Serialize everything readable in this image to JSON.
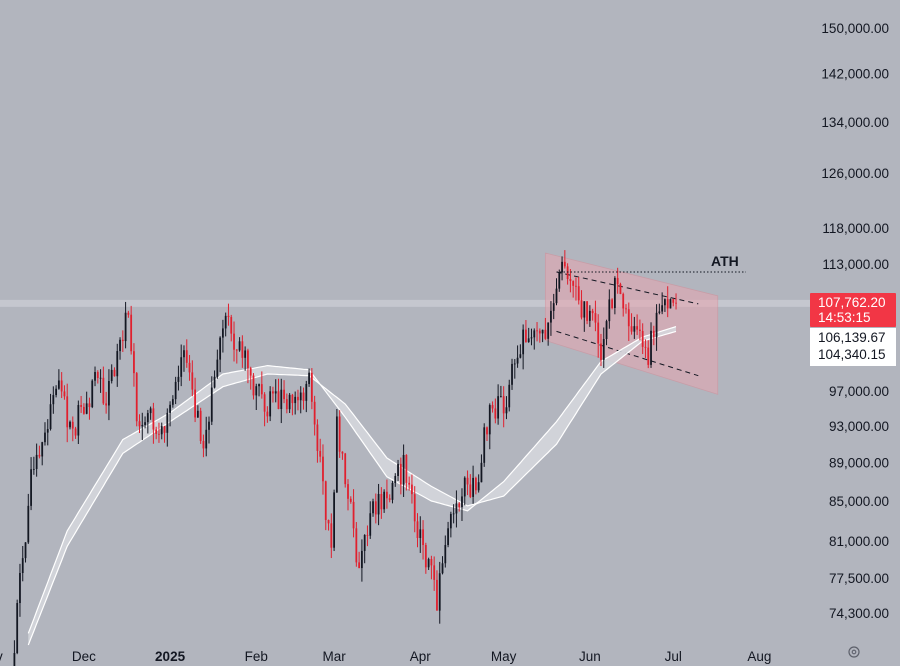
{
  "chart_data": {
    "type": "candlestick",
    "y_axis": {
      "scale": "log",
      "range": [
        72500,
        155000
      ],
      "ticks": [
        150000,
        142000,
        134000,
        126000,
        118000,
        113000,
        97000,
        93000,
        89000,
        85000,
        81000,
        77500,
        74300
      ],
      "tick_labels": [
        "150,000.00",
        "142,000.00",
        "134,000.00",
        "126,000.00",
        "118,000.00",
        "113,000.00",
        "97,000.00",
        "93,000.00",
        "89,000.00",
        "85,000.00",
        "81,000.00",
        "77,500.00",
        "74,300.00"
      ]
    },
    "x_axis": {
      "labels": [
        "Dec",
        "2025",
        "Feb",
        "Mar",
        "Apr",
        "May",
        "Jun",
        "Jul",
        "Aug"
      ],
      "label_dates": [
        "2024-12-01",
        "2025-01-01",
        "2025-02-01",
        "2025-03-01",
        "2025-04-01",
        "2025-05-01",
        "2025-06-01",
        "2025-07-01",
        "2025-08-01"
      ],
      "range": [
        "2024-11-01",
        "2025-08-25"
      ],
      "cut_label": "v"
    },
    "annotations": {
      "ath_label": "ATH",
      "ath_price": 111900,
      "horizontal_level": 107762.2,
      "channel": {
        "upper": [
          [
            "2025-05-20",
            111900
          ],
          [
            "2025-07-10",
            107700
          ]
        ],
        "lower": [
          [
            "2025-05-20",
            104200
          ],
          [
            "2025-07-10",
            98800
          ]
        ],
        "shade_from": "2025-05-16",
        "shade_to": "2025-07-17"
      }
    },
    "price_tags": [
      {
        "label": "107,762.20",
        "sub": "14:53:15",
        "bg": "#f23645",
        "fg": "#ffffff"
      },
      {
        "label": "106,139.67",
        "bg": "#ffffff",
        "fg": "#131722"
      },
      {
        "label": "104,340.15",
        "bg": "#ffffff",
        "fg": "#131722"
      }
    ],
    "colors": {
      "up": "#131722",
      "down": "#e0202e",
      "background": "#b2b5be",
      "ribbon": "#ffffff",
      "channel_fill": "#e8a6b0"
    },
    "series_key_points": [
      [
        "2024-11-05",
        69500
      ],
      [
        "2024-11-12",
        88000
      ],
      [
        "2024-11-22",
        98500
      ],
      [
        "2024-11-26",
        92000
      ],
      [
        "2024-12-05",
        98000
      ],
      [
        "2024-12-09",
        96500
      ],
      [
        "2024-12-17",
        106500
      ],
      [
        "2024-12-20",
        94500
      ],
      [
        "2024-12-30",
        92500
      ],
      [
        "2025-01-06",
        101500
      ],
      [
        "2025-01-13",
        90500
      ],
      [
        "2025-01-20",
        106000
      ],
      [
        "2025-01-27",
        101000
      ],
      [
        "2025-02-03",
        95500
      ],
      [
        "2025-02-14",
        96500
      ],
      [
        "2025-02-20",
        98000
      ],
      [
        "2025-02-25",
        86000
      ],
      [
        "2025-02-28",
        80500
      ],
      [
        "2025-03-02",
        93500
      ],
      [
        "2025-03-10",
        78500
      ],
      [
        "2025-03-15",
        84000
      ],
      [
        "2025-03-26",
        88500
      ],
      [
        "2025-03-31",
        82500
      ],
      [
        "2025-04-07",
        75500
      ],
      [
        "2025-04-12",
        84500
      ],
      [
        "2025-04-22",
        87500
      ],
      [
        "2025-04-25",
        93500
      ],
      [
        "2025-05-02",
        96500
      ],
      [
        "2025-05-08",
        103500
      ],
      [
        "2025-05-15",
        103000
      ],
      [
        "2025-05-22",
        111500
      ],
      [
        "2025-05-26",
        109500
      ],
      [
        "2025-06-02",
        105000
      ],
      [
        "2025-06-05",
        101500
      ],
      [
        "2025-06-10",
        110000
      ],
      [
        "2025-06-17",
        104500
      ],
      [
        "2025-06-22",
        100500
      ],
      [
        "2025-06-25",
        107000
      ],
      [
        "2025-06-30",
        107500
      ],
      [
        "2025-07-02",
        107762
      ]
    ],
    "ma_fast_key_points": [
      [
        "2024-11-11",
        72500
      ],
      [
        "2024-11-25",
        82000
      ],
      [
        "2024-12-15",
        91500
      ],
      [
        "2025-01-01",
        94500
      ],
      [
        "2025-01-20",
        99000
      ],
      [
        "2025-02-05",
        100000
      ],
      [
        "2025-02-20",
        99500
      ],
      [
        "2025-03-05",
        94000
      ],
      [
        "2025-03-20",
        87500
      ],
      [
        "2025-04-05",
        85000
      ],
      [
        "2025-04-18",
        84000
      ],
      [
        "2025-05-01",
        87000
      ],
      [
        "2025-05-20",
        93500
      ],
      [
        "2025-06-05",
        100500
      ],
      [
        "2025-06-20",
        103500
      ],
      [
        "2025-07-02",
        104800
      ]
    ],
    "ma_slow_key_points": [
      [
        "2024-11-11",
        71500
      ],
      [
        "2024-11-25",
        80500
      ],
      [
        "2024-12-15",
        90000
      ],
      [
        "2025-01-01",
        93500
      ],
      [
        "2025-01-20",
        97500
      ],
      [
        "2025-02-05",
        99000
      ],
      [
        "2025-02-20",
        98800
      ],
      [
        "2025-03-05",
        95500
      ],
      [
        "2025-03-20",
        89500
      ],
      [
        "2025-04-05",
        86500
      ],
      [
        "2025-04-18",
        84500
      ],
      [
        "2025-05-01",
        85500
      ],
      [
        "2025-05-20",
        91000
      ],
      [
        "2025-06-05",
        99000
      ],
      [
        "2025-06-20",
        103000
      ],
      [
        "2025-07-02",
        104200
      ]
    ]
  },
  "ui": {
    "settings_icon": "gear-icon"
  }
}
